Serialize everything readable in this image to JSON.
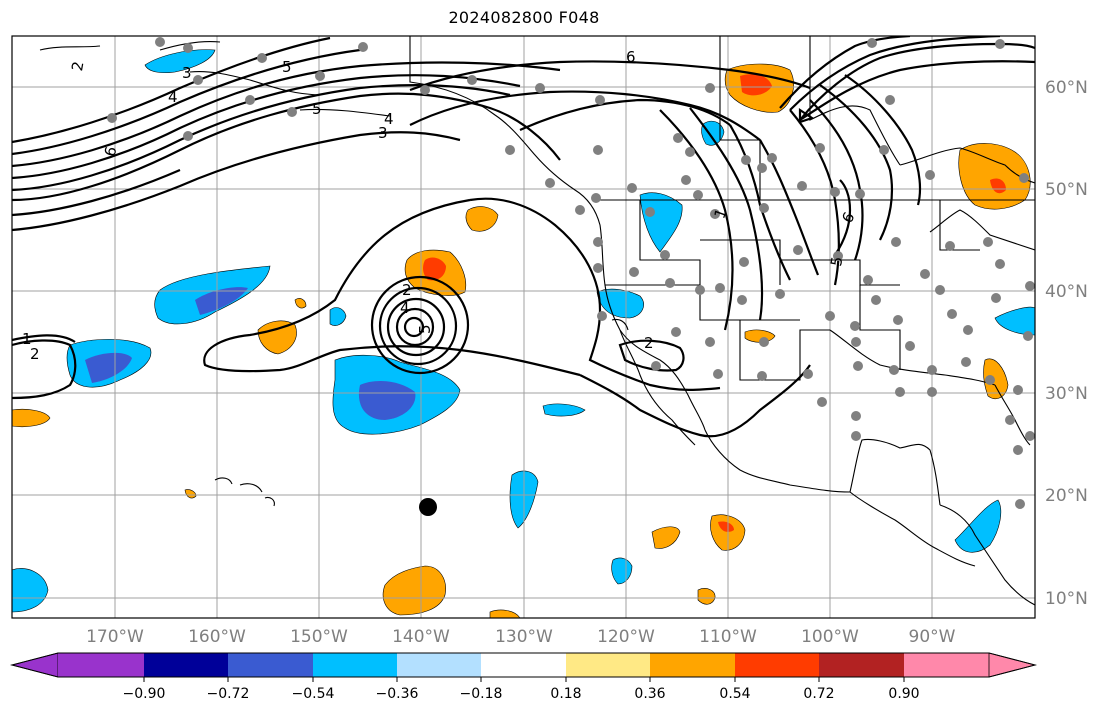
{
  "title": "2024082800 F048",
  "colors": {
    "neg_090": "#9933cc",
    "neg_072": "#000099",
    "neg_054": "#3a5bd1",
    "neg_036": "#00bfff",
    "neg_018": "#b3e0ff",
    "neutral": "#ffffff",
    "pos_018": "#ffe985",
    "pos_036": "#ffa500",
    "pos_054": "#ff3c00",
    "pos_072": "#b22222",
    "pos_090": "#ff88aa",
    "contour": "#000000",
    "station_dot": "#808080",
    "grid": "#a0a0a0"
  },
  "lat_labels": [
    "60°N",
    "50°N",
    "40°N",
    "30°N",
    "20°N",
    "10°N"
  ],
  "lon_labels": [
    "170°W",
    "160°W",
    "150°W",
    "140°W",
    "130°W",
    "120°W",
    "110°W",
    "100°W",
    "90°W"
  ],
  "colorbar": {
    "ticks": [
      "−0.90",
      "−0.72",
      "−0.54",
      "−0.36",
      "−0.18",
      "0.18",
      "0.36",
      "0.54",
      "0.72",
      "0.90"
    ],
    "bins": [
      "#9933cc",
      "#000099",
      "#3a5bd1",
      "#00bfff",
      "#b3e0ff",
      "#ffffff",
      "#ffe985",
      "#ffa500",
      "#ff3c00",
      "#b22222",
      "#ff88aa"
    ]
  },
  "contour_labels": [
    "2",
    "3",
    "4",
    "6",
    "5",
    "5",
    "4",
    "3",
    "6",
    "1",
    "2",
    "2",
    "4",
    "5",
    "2",
    "1",
    "6",
    "5"
  ]
}
